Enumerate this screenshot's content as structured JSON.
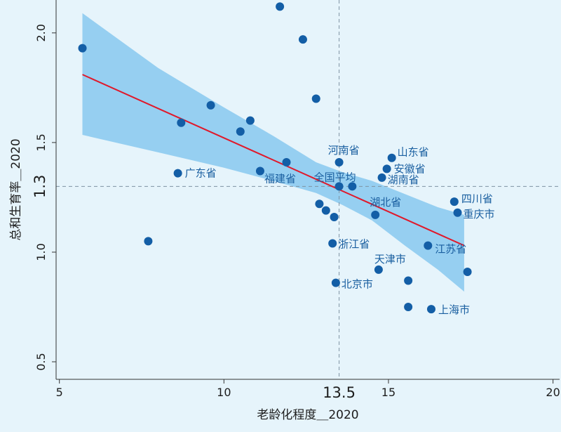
{
  "chart_data": {
    "type": "scatter",
    "xlabel": "老龄化程度＿2020",
    "ylabel": "总和生育率＿2020",
    "xlim": [
      4.9,
      20.2
    ],
    "ylim": [
      0.42,
      2.15
    ],
    "x_ticks": [
      5,
      10,
      15,
      20
    ],
    "y_ticks": [
      0.5,
      1.0,
      1.5,
      2.0
    ],
    "y_tick_labels": [
      "0.5",
      "1.0",
      "1.5",
      "2.0"
    ],
    "ref_lines": {
      "x": 13.5,
      "y": 1.3,
      "x_label": "13.5",
      "y_label": "1.3"
    },
    "fit_line": {
      "x1": 5.7,
      "y1": 1.81,
      "x2": 17.3,
      "y2": 1.03
    },
    "confidence_band": {
      "upper": [
        [
          5.7,
          2.09
        ],
        [
          8.0,
          1.84
        ],
        [
          10.0,
          1.66
        ],
        [
          11.5,
          1.53
        ],
        [
          12.8,
          1.41
        ],
        [
          13.6,
          1.365
        ],
        [
          14.5,
          1.325
        ],
        [
          15.5,
          1.265
        ],
        [
          16.5,
          1.205
        ],
        [
          17.3,
          1.17
        ]
      ],
      "lower": [
        [
          17.3,
          0.82
        ],
        [
          16.5,
          0.92
        ],
        [
          15.5,
          1.03
        ],
        [
          14.5,
          1.145
        ],
        [
          13.6,
          1.215
        ],
        [
          12.8,
          1.27
        ],
        [
          11.5,
          1.325
        ],
        [
          10.0,
          1.385
        ],
        [
          8.0,
          1.455
        ],
        [
          5.7,
          1.535
        ]
      ]
    },
    "points": [
      {
        "x": 5.7,
        "y": 1.93,
        "label": ""
      },
      {
        "x": 7.7,
        "y": 1.05,
        "label": ""
      },
      {
        "x": 8.6,
        "y": 1.36,
        "label": "广东省"
      },
      {
        "x": 8.7,
        "y": 1.59,
        "label": ""
      },
      {
        "x": 9.6,
        "y": 1.67,
        "label": ""
      },
      {
        "x": 10.5,
        "y": 1.55,
        "label": ""
      },
      {
        "x": 10.8,
        "y": 1.6,
        "label": ""
      },
      {
        "x": 11.1,
        "y": 1.37,
        "label": "福建省"
      },
      {
        "x": 11.7,
        "y": 2.12,
        "label": ""
      },
      {
        "x": 11.9,
        "y": 1.41,
        "label": ""
      },
      {
        "x": 12.4,
        "y": 1.97,
        "label": ""
      },
      {
        "x": 12.8,
        "y": 1.7,
        "label": ""
      },
      {
        "x": 12.9,
        "y": 1.22,
        "label": ""
      },
      {
        "x": 13.1,
        "y": 1.19,
        "label": ""
      },
      {
        "x": 13.3,
        "y": 1.04,
        "label": "浙江省"
      },
      {
        "x": 13.35,
        "y": 1.16,
        "label": ""
      },
      {
        "x": 13.4,
        "y": 0.86,
        "label": "北京市"
      },
      {
        "x": 13.5,
        "y": 1.41,
        "label": "河南省"
      },
      {
        "x": 13.5,
        "y": 1.3,
        "label": "全国平均"
      },
      {
        "x": 13.9,
        "y": 1.3,
        "label": ""
      },
      {
        "x": 14.6,
        "y": 1.17,
        "label": "湖北省"
      },
      {
        "x": 14.7,
        "y": 0.92,
        "label": "天津市"
      },
      {
        "x": 14.8,
        "y": 1.34,
        "label": "湖南省"
      },
      {
        "x": 14.95,
        "y": 1.38,
        "label": "安徽省"
      },
      {
        "x": 15.1,
        "y": 1.43,
        "label": "山东省"
      },
      {
        "x": 15.6,
        "y": 0.87,
        "label": ""
      },
      {
        "x": 15.6,
        "y": 0.75,
        "label": ""
      },
      {
        "x": 16.2,
        "y": 1.03,
        "label": "江苏省"
      },
      {
        "x": 16.3,
        "y": 0.74,
        "label": "上海市"
      },
      {
        "x": 17.0,
        "y": 1.23,
        "label": "四川省"
      },
      {
        "x": 17.1,
        "y": 1.18,
        "label": "重庆市"
      },
      {
        "x": 17.4,
        "y": 0.91,
        "label": ""
      }
    ],
    "grid": false,
    "legend": "none"
  },
  "colors": {
    "background": "#e6f4fb",
    "band": "#8dcbf0",
    "point": "#135ea6",
    "fit_line": "#e0192b",
    "ref_line": "#7f93a3",
    "axis": "#333333",
    "label_text": "#1a5fa0"
  }
}
